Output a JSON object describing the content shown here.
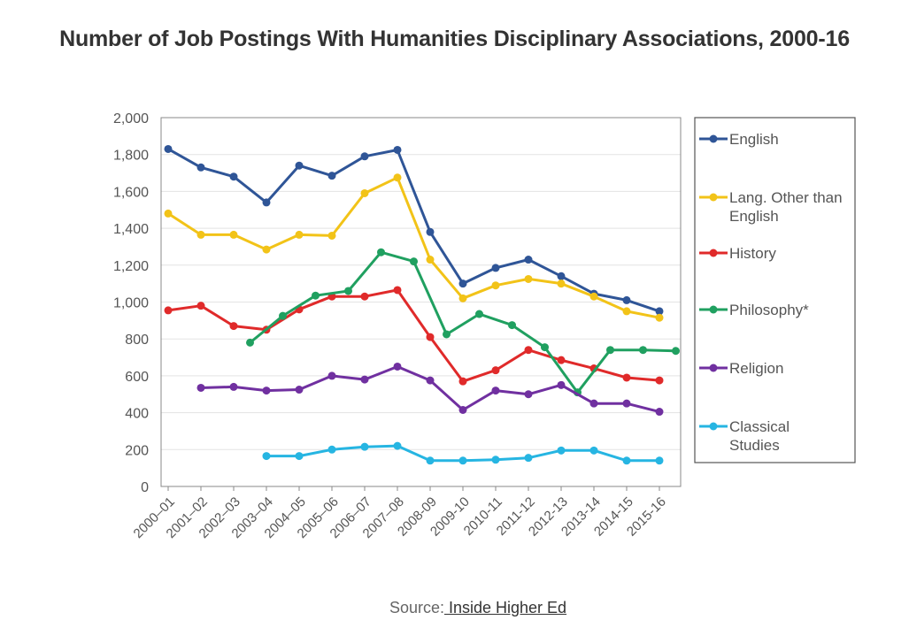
{
  "chart_data": {
    "type": "line",
    "title": "Number of Job Postings With Humanities Disciplinary Associations, 2000-16",
    "xlabel": "",
    "ylabel": "",
    "ylim": [
      0,
      2000
    ],
    "yticks": [
      "0",
      "200",
      "400",
      "600",
      "800",
      "1,000",
      "1,200",
      "1,400",
      "1,600",
      "1,800",
      "2,000"
    ],
    "grid": true,
    "legend_position": "right",
    "categories": [
      "2000–01",
      "2001–02",
      "2002–03",
      "2003–04",
      "2004–05",
      "2005–06",
      "2006–07",
      "2007–08",
      "2008-09",
      "2009-10",
      "2010-11",
      "2011-12",
      "2012-13",
      "2013-14",
      "2014-15",
      "2015-16"
    ],
    "series": [
      {
        "name": "English",
        "color": "#2f5597",
        "points": [
          [
            0,
            1830
          ],
          [
            1,
            1730
          ],
          [
            2,
            1680
          ],
          [
            3,
            1540
          ],
          [
            4,
            1740
          ],
          [
            5,
            1685
          ],
          [
            6,
            1790
          ],
          [
            7,
            1825
          ],
          [
            8,
            1380
          ],
          [
            9,
            1100
          ],
          [
            10,
            1185
          ],
          [
            11,
            1230
          ],
          [
            12,
            1140
          ],
          [
            13,
            1045
          ],
          [
            14,
            1010
          ],
          [
            15,
            950
          ]
        ]
      },
      {
        "name": "Lang. Other than English",
        "color": "#f2c318",
        "points": [
          [
            0,
            1480
          ],
          [
            1,
            1365
          ],
          [
            2,
            1365
          ],
          [
            3,
            1285
          ],
          [
            4,
            1365
          ],
          [
            5,
            1360
          ],
          [
            6,
            1590
          ],
          [
            7,
            1675
          ],
          [
            8,
            1230
          ],
          [
            9,
            1020
          ],
          [
            10,
            1090
          ],
          [
            11,
            1125
          ],
          [
            12,
            1100
          ],
          [
            13,
            1030
          ],
          [
            14,
            950
          ],
          [
            15,
            915
          ]
        ]
      },
      {
        "name": "History",
        "color": "#e02a2a",
        "points": [
          [
            0,
            955
          ],
          [
            1,
            980
          ],
          [
            2,
            870
          ],
          [
            3,
            850
          ],
          [
            4,
            960
          ],
          [
            5,
            1030
          ],
          [
            6,
            1030
          ],
          [
            7,
            1065
          ],
          [
            8,
            810
          ],
          [
            9,
            570
          ],
          [
            10,
            630
          ],
          [
            11,
            740
          ],
          [
            12,
            685
          ],
          [
            13,
            640
          ],
          [
            14,
            590
          ],
          [
            15,
            575
          ]
        ]
      },
      {
        "name": "Philosophy*",
        "color": "#20a060",
        "points": [
          [
            2.5,
            780
          ],
          [
            3.5,
            925
          ],
          [
            4.5,
            1035
          ],
          [
            5.5,
            1060
          ],
          [
            6.5,
            1270
          ],
          [
            7.5,
            1220
          ],
          [
            8.5,
            825
          ],
          [
            9.5,
            935
          ],
          [
            10.5,
            875
          ],
          [
            11.5,
            755
          ],
          [
            12.5,
            510
          ],
          [
            13.5,
            740
          ],
          [
            14.5,
            740
          ],
          [
            15.5,
            735
          ]
        ]
      },
      {
        "name": "Religion",
        "color": "#7030a0",
        "points": [
          [
            1,
            535
          ],
          [
            2,
            540
          ],
          [
            3,
            520
          ],
          [
            4,
            525
          ],
          [
            5,
            600
          ],
          [
            6,
            580
          ],
          [
            7,
            650
          ],
          [
            8,
            575
          ],
          [
            9,
            415
          ],
          [
            10,
            520
          ],
          [
            11,
            500
          ],
          [
            12,
            550
          ],
          [
            13,
            450
          ],
          [
            14,
            450
          ],
          [
            15,
            405
          ]
        ]
      },
      {
        "name": "Classical Studies",
        "color": "#26b5e2",
        "points": [
          [
            3,
            165
          ],
          [
            4,
            165
          ],
          [
            5,
            200
          ],
          [
            6,
            215
          ],
          [
            7,
            220
          ],
          [
            8,
            140
          ],
          [
            9,
            140
          ],
          [
            10,
            145
          ],
          [
            11,
            155
          ],
          [
            12,
            195
          ],
          [
            13,
            195
          ],
          [
            14,
            140
          ],
          [
            15,
            140
          ]
        ]
      }
    ]
  },
  "legend": {
    "items": [
      {
        "lines": [
          "English"
        ]
      },
      {
        "lines": [
          "Lang. Other than",
          "English"
        ]
      },
      {
        "lines": [
          "History"
        ]
      },
      {
        "lines": [
          "Philosophy*"
        ]
      },
      {
        "lines": [
          "Religion"
        ]
      },
      {
        "lines": [
          "Classical",
          "Studies"
        ]
      }
    ]
  },
  "source": {
    "prefix": "Source:",
    "link_text": " Inside Higher Ed"
  }
}
